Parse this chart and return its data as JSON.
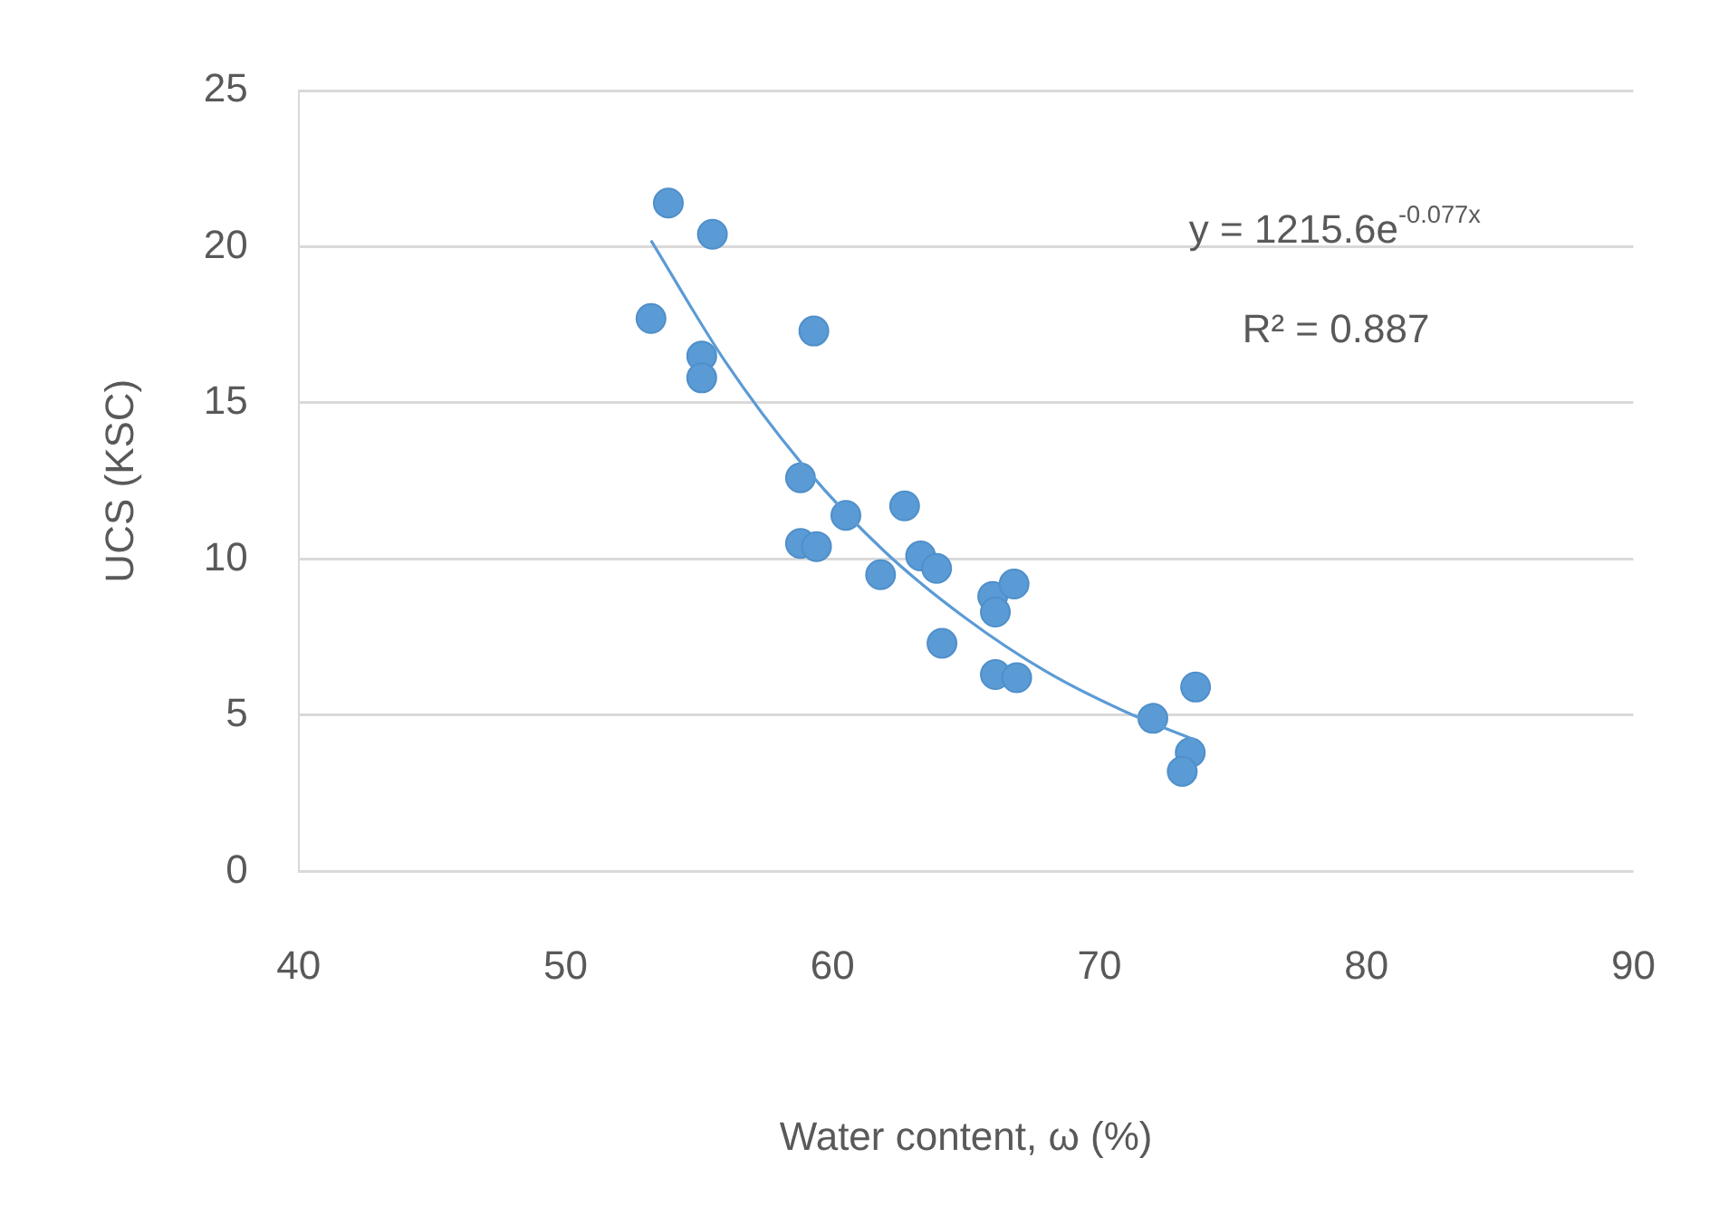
{
  "chart_data": {
    "type": "scatter",
    "xlabel": "Water content, ω (%)",
    "ylabel": "UCS (KSC)",
    "xlim": [
      40,
      90
    ],
    "xticks": [
      40,
      50,
      60,
      70,
      80,
      90
    ],
    "ylim": [
      0,
      25
    ],
    "yticks": [
      0,
      5,
      10,
      15,
      20,
      25
    ],
    "grid": "y",
    "legend": false,
    "marker": "circle",
    "annotations": [
      "y = 1215.6e$^{-0.077x}$",
      "R² = 0.887"
    ],
    "series": [
      {
        "color": "#5b9bd5",
        "x": [
          53.85,
          55.5,
          53.2,
          59.3,
          55.1,
          55.1,
          58.8,
          58.8,
          59.4,
          60.5,
          62.7,
          61.8,
          63.3,
          63.9,
          64.1,
          66.0,
          66.1,
          66.8,
          66.1,
          66.9,
          72.0,
          73.6,
          73.4,
          73.1
        ],
        "values": [
          21.4,
          20.4,
          17.7,
          17.3,
          16.5,
          15.8,
          12.6,
          10.5,
          10.4,
          11.4,
          11.7,
          9.5,
          10.1,
          9.7,
          7.3,
          8.8,
          8.3,
          9.2,
          6.3,
          6.2,
          4.9,
          5.9,
          3.8,
          3.2
        ]
      },
      {
        "type": "line",
        "color": "#5b9bd5",
        "marker": "none",
        "x": [
          53.2,
          56,
          59,
          62,
          65,
          68,
          71,
          73.6
        ],
        "values": [
          20.2,
          16.3,
          12.9,
          10.2,
          8.1,
          6.4,
          5.1,
          4.2
        ]
      }
    ]
  }
}
